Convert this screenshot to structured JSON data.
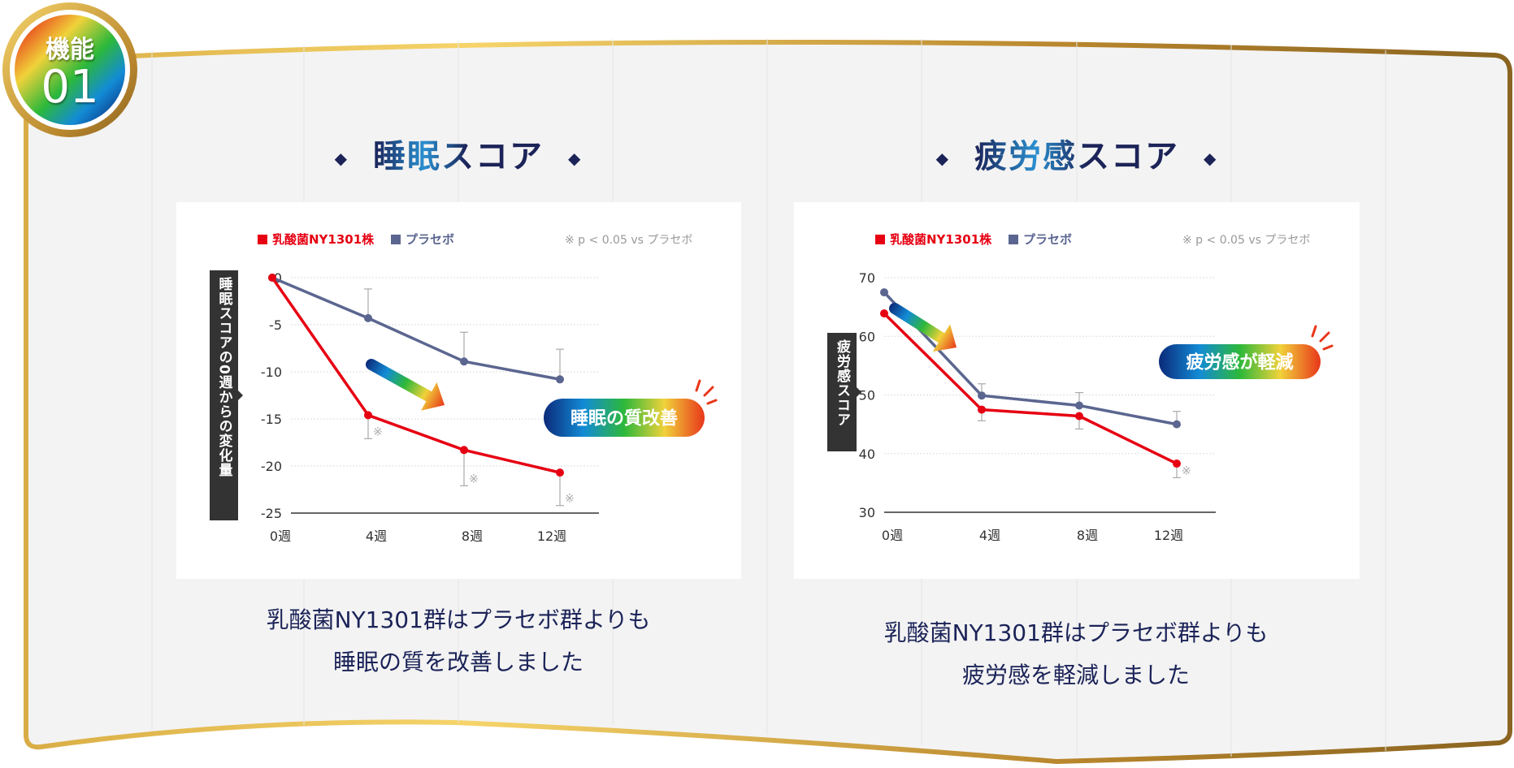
{
  "badge": {
    "line1": "機能",
    "line2": "01"
  },
  "colors": {
    "red": "#e60012",
    "placebo": "#5b6690",
    "gold": "#d9ad45",
    "navy": "#1b2358",
    "note": "#999999"
  },
  "panels": [
    {
      "title": "睡眠スコア",
      "caption_line1": "乳酸菌NY1301群はプラセボ群よりも",
      "caption_line2": "睡眠の質を改善しました"
    },
    {
      "title": "疲労感スコア",
      "caption_line1": "乳酸菌NY1301群はプラセボ群よりも",
      "caption_line2": "疲労感を軽減しました"
    }
  ],
  "chart_data": [
    {
      "type": "line",
      "ylabel": "睡眠スコアの0週からの変化量",
      "categories": [
        "0週",
        "4週",
        "8週",
        "12週"
      ],
      "ylim": [
        -25,
        0
      ],
      "yticks": [
        0,
        -5,
        -10,
        -15,
        -20,
        -25
      ],
      "grid": true,
      "legend_position": "top",
      "note": "※ p < 0.05 vs プラセボ",
      "callout": "睡眠の質改善",
      "series": [
        {
          "name": "乳酸菌NY1301株",
          "color": "#e60012",
          "values": [
            0,
            -14.6,
            -18.3,
            -20.7
          ],
          "error_lower": [
            null,
            -17.1,
            -22.1,
            -24.2
          ],
          "significant": [
            false,
            true,
            true,
            true
          ]
        },
        {
          "name": "プラセボ",
          "color": "#5b6690",
          "values": [
            0,
            -4.3,
            -8.9,
            -10.8
          ],
          "error_upper": [
            null,
            -1.2,
            -5.8,
            -7.6
          ]
        }
      ]
    },
    {
      "type": "line",
      "ylabel": "疲労感スコア",
      "categories": [
        "0週",
        "4週",
        "8週",
        "12週"
      ],
      "ylim": [
        30,
        70
      ],
      "yticks": [
        70,
        60,
        50,
        40,
        30
      ],
      "grid": true,
      "legend_position": "top",
      "note": "※ p < 0.05 vs プラセボ",
      "callout": "疲労感が軽減",
      "series": [
        {
          "name": "乳酸菌NY1301株",
          "color": "#e60012",
          "values": [
            63.9,
            47.5,
            46.4,
            38.3
          ],
          "error_lower": [
            null,
            45.6,
            44.2,
            35.9
          ],
          "significant": [
            false,
            false,
            false,
            true
          ]
        },
        {
          "name": "プラセボ",
          "color": "#5b6690",
          "values": [
            67.5,
            49.9,
            48.2,
            45.0
          ],
          "error_upper": [
            null,
            51.9,
            50.4,
            47.2
          ]
        }
      ]
    }
  ]
}
